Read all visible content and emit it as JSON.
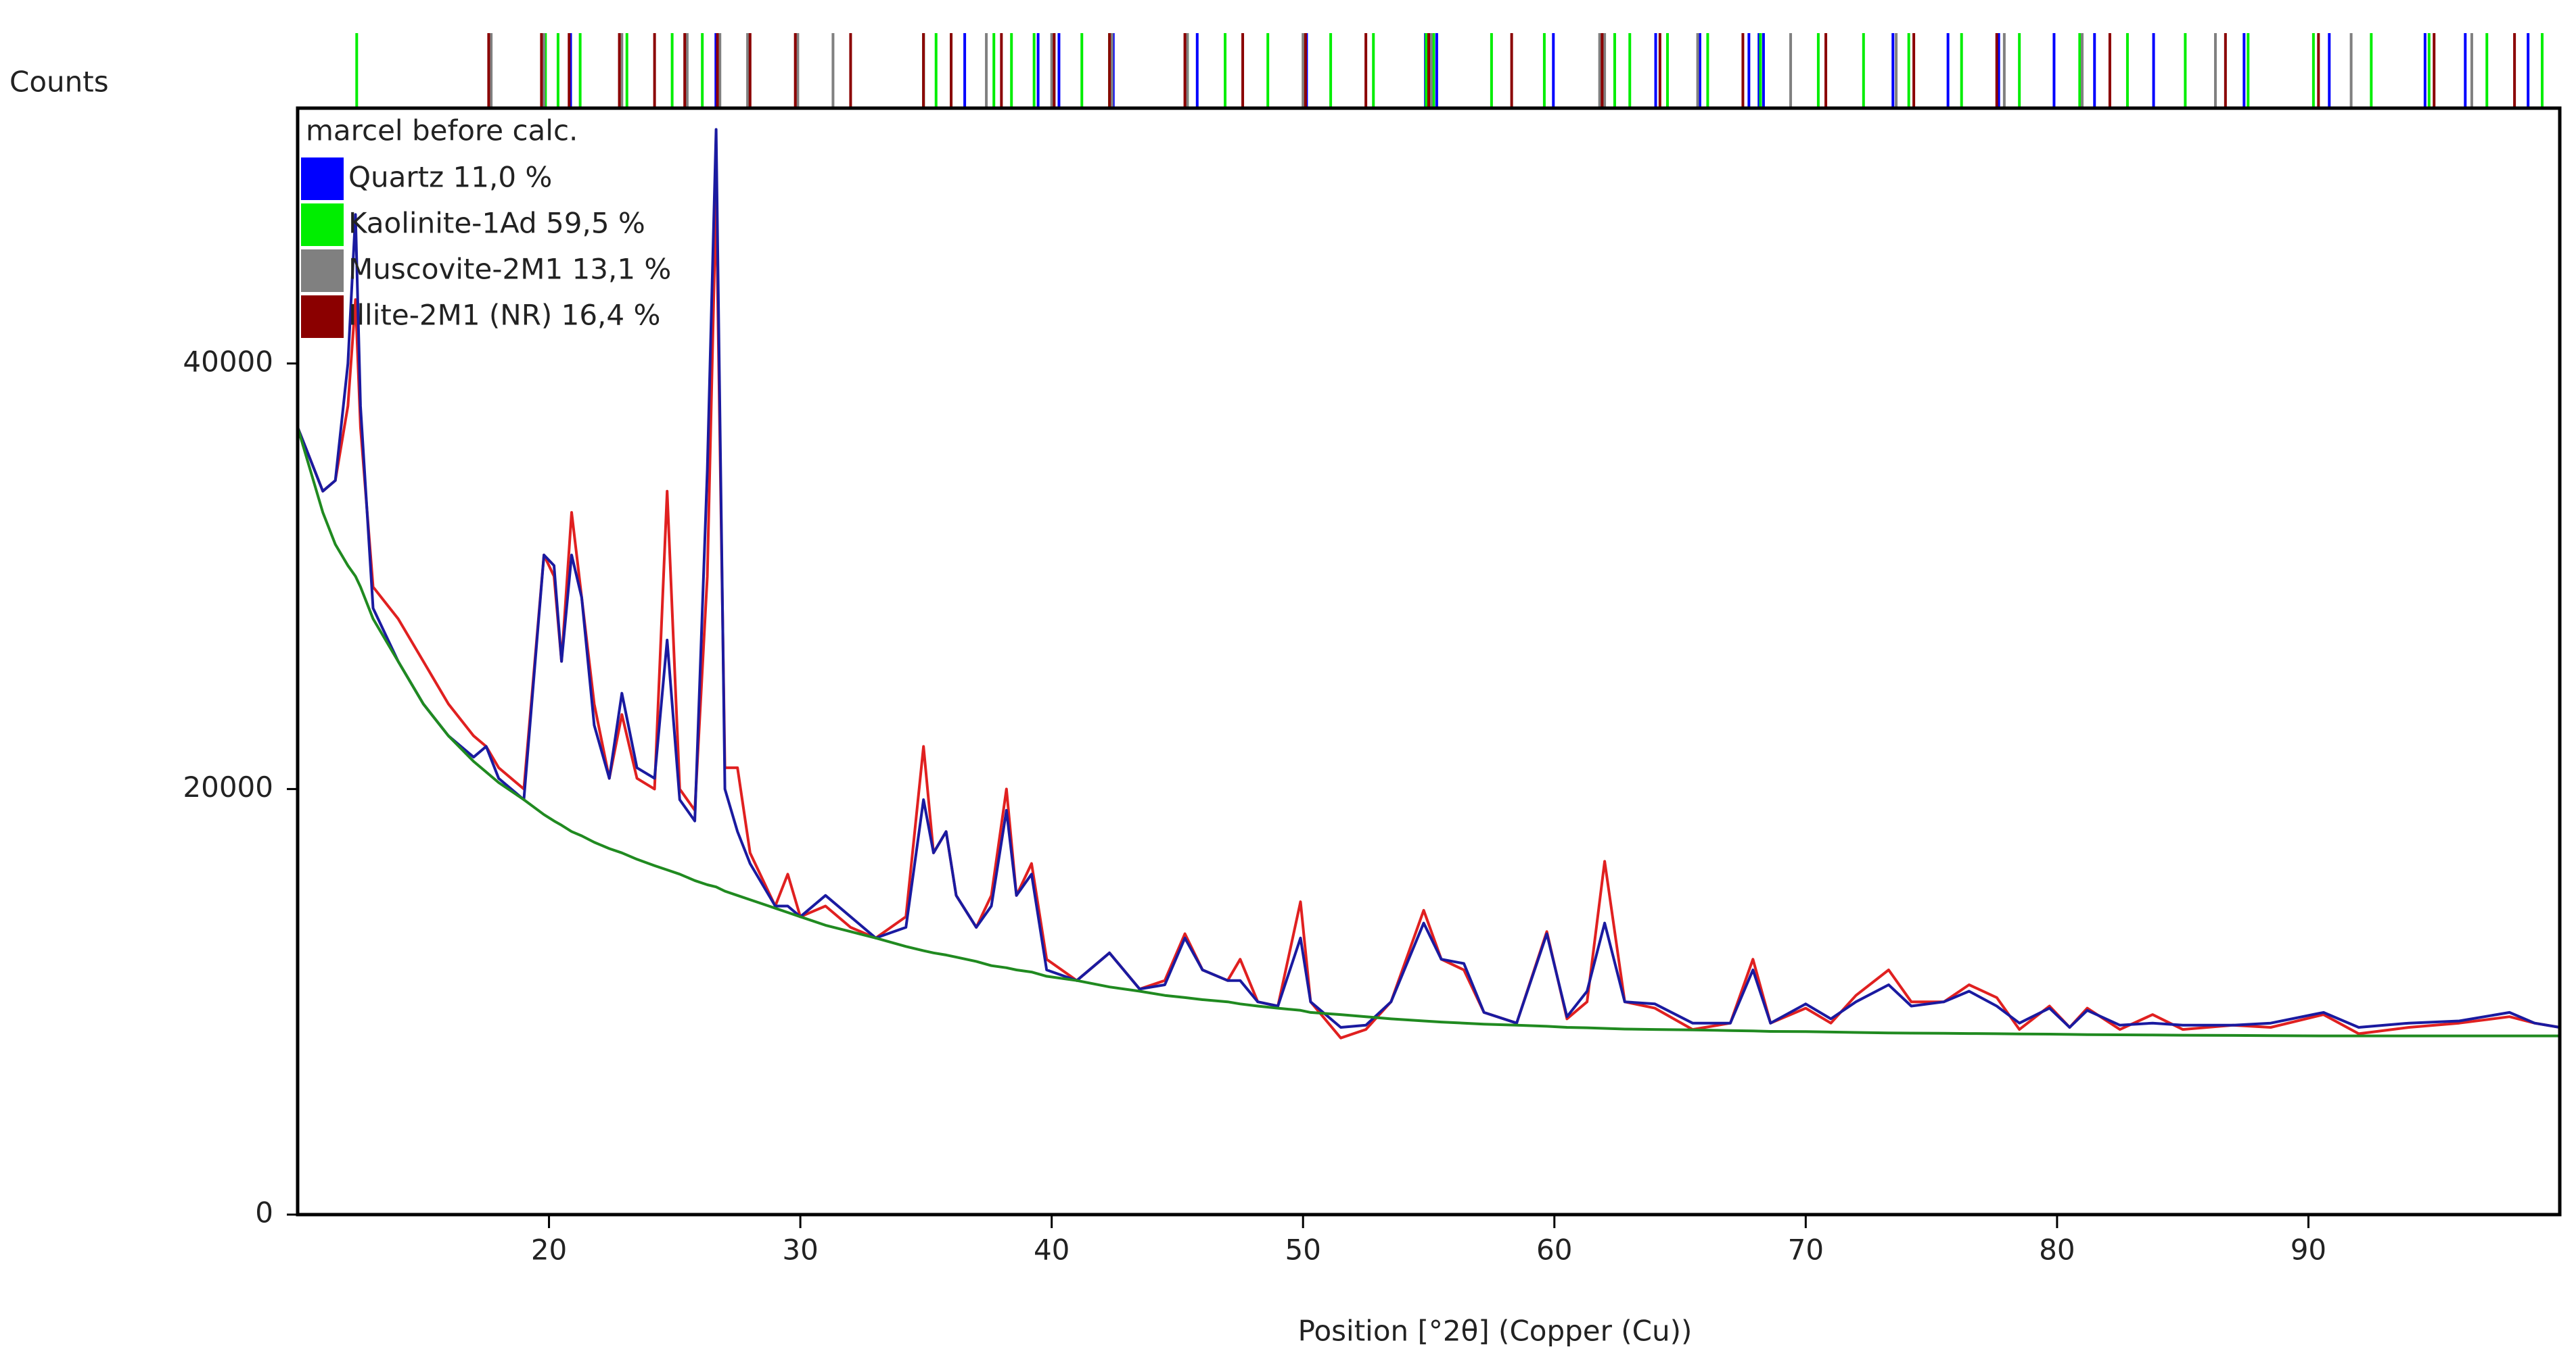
{
  "chart_data": {
    "type": "line",
    "y_label": "Counts",
    "x_label": "Position [°2θ] (Copper (Cu))",
    "legend_title": "marcel before calc.",
    "legend_position": "upper left",
    "xlim": [
      10,
      100
    ],
    "ylim": [
      0,
      52000
    ],
    "xticks": [
      20,
      30,
      40,
      50,
      60,
      70,
      80,
      90
    ],
    "yticks": [
      0,
      20000,
      40000
    ],
    "x": [
      10,
      10.5,
      11,
      11.5,
      12,
      12.3,
      12.5,
      13,
      14,
      15,
      16,
      17,
      17.5,
      18,
      19,
      19.8,
      20.2,
      20.5,
      20.9,
      21.3,
      21.8,
      22.4,
      22.9,
      23.5,
      24.2,
      24.7,
      25.2,
      25.8,
      26.3,
      26.65,
      27.0,
      27.5,
      28.0,
      29.0,
      29.5,
      30.0,
      31.0,
      32.0,
      33.0,
      34.2,
      34.9,
      35.3,
      35.8,
      36.2,
      37.0,
      37.6,
      38.2,
      38.6,
      39.2,
      39.8,
      41.0,
      42.3,
      43.5,
      44.5,
      45.3,
      46.0,
      47.0,
      47.5,
      48.2,
      49.0,
      49.9,
      50.3,
      51.5,
      52.5,
      53.5,
      54.8,
      55.5,
      56.4,
      57.2,
      58.5,
      59.7,
      60.5,
      61.3,
      62.0,
      62.8,
      64.0,
      65.5,
      67.0,
      67.9,
      68.6,
      70.0,
      71.0,
      72.0,
      73.3,
      74.2,
      75.5,
      76.5,
      77.6,
      78.5,
      79.7,
      80.5,
      81.2,
      82.5,
      83.8,
      85.0,
      87.0,
      88.5,
      90.6,
      92.0,
      94.0,
      96.0,
      98.0,
      99.0,
      100
    ],
    "series": [
      {
        "color": "#e02020",
        "values": [
          37000,
          35500,
          34000,
          34500,
          38000,
          43000,
          37000,
          29500,
          28000,
          26000,
          24000,
          22500,
          22000,
          21000,
          20000,
          31000,
          30000,
          26000,
          33000,
          29000,
          24000,
          20500,
          23500,
          20500,
          20000,
          34000,
          20000,
          19000,
          30000,
          48000,
          21000,
          21000,
          17000,
          14500,
          16000,
          14000,
          14500,
          13500,
          13000,
          14000,
          22000,
          17000,
          18000,
          15000,
          13500,
          15000,
          20000,
          15000,
          16500,
          12000,
          11000,
          12300,
          10600,
          11000,
          13200,
          11500,
          11000,
          12000,
          10000,
          9800,
          14700,
          10000,
          8300,
          8700,
          10000,
          14300,
          12000,
          11500,
          9500,
          9000,
          13300,
          9200,
          10000,
          16600,
          10000,
          9700,
          8700,
          9000,
          12000,
          9000,
          9700,
          9000,
          10300,
          11500,
          10000,
          10000,
          10800,
          10200,
          8700,
          9800,
          8800,
          9700,
          8700,
          9400,
          8700,
          8900,
          8800,
          9400,
          8500,
          8800,
          9000,
          9300,
          9000,
          8800
        ]
      },
      {
        "color": "#1a1aa0",
        "values": [
          37000,
          35500,
          34000,
          34500,
          40000,
          47000,
          38000,
          28500,
          26000,
          24000,
          22500,
          21500,
          22000,
          20500,
          19500,
          31000,
          30500,
          26000,
          31000,
          29000,
          23000,
          20500,
          24500,
          21000,
          20500,
          27000,
          19500,
          18500,
          35000,
          51000,
          20000,
          18000,
          16500,
          14500,
          14500,
          14000,
          15000,
          14000,
          13000,
          13500,
          19500,
          17000,
          18000,
          15000,
          13500,
          14500,
          19000,
          15000,
          16000,
          11500,
          11000,
          12300,
          10600,
          10800,
          13000,
          11500,
          11000,
          11000,
          10000,
          9800,
          13000,
          10000,
          8800,
          8900,
          10000,
          13700,
          12000,
          11800,
          9500,
          9000,
          13200,
          9300,
          10500,
          13700,
          10000,
          9900,
          9000,
          9000,
          11500,
          9000,
          9900,
          9200,
          10000,
          10800,
          9800,
          10000,
          10500,
          9800,
          9000,
          9700,
          8800,
          9600,
          8900,
          9000,
          8900,
          8900,
          9000,
          9500,
          8800,
          9000,
          9100,
          9500,
          9000,
          8800
        ]
      },
      {
        "color": "#208a20",
        "values": [
          37000,
          35000,
          33000,
          31500,
          30500,
          30000,
          29500,
          28000,
          26000,
          24000,
          22500,
          21300,
          20800,
          20300,
          19500,
          18800,
          18500,
          18300,
          18000,
          17800,
          17500,
          17200,
          17000,
          16700,
          16400,
          16200,
          16000,
          15700,
          15500,
          15400,
          15200,
          15000,
          14800,
          14400,
          14200,
          14000,
          13600,
          13300,
          13000,
          12600,
          12400,
          12300,
          12200,
          12100,
          11900,
          11700,
          11600,
          11500,
          11400,
          11200,
          11000,
          10700,
          10500,
          10300,
          10200,
          10100,
          10000,
          9900,
          9800,
          9700,
          9600,
          9500,
          9400,
          9300,
          9200,
          9100,
          9050,
          9000,
          8950,
          8900,
          8850,
          8800,
          8780,
          8750,
          8720,
          8700,
          8680,
          8650,
          8630,
          8610,
          8600,
          8580,
          8560,
          8540,
          8530,
          8520,
          8510,
          8500,
          8490,
          8480,
          8470,
          8460,
          8450,
          8440,
          8430,
          8420,
          8410,
          8400,
          8400,
          8400,
          8400,
          8400,
          8400,
          8400
        ]
      }
    ],
    "phases": [
      {
        "name": "Quartz 11,0 %",
        "color": "#0000ff",
        "positions": [
          20.86,
          26.64,
          36.54,
          39.46,
          40.29,
          42.45,
          45.79,
          50.14,
          54.87,
          55.32,
          59.96,
          64.03,
          65.79,
          67.74,
          68.14,
          68.32,
          73.47,
          75.66,
          77.68,
          79.88,
          81.49,
          83.84,
          87.44,
          90.83,
          94.64,
          96.24,
          98.74
        ]
      },
      {
        "name": "Kaolinite-1Ad 59,5 %",
        "color": "#00ee00",
        "positions": [
          12.35,
          19.86,
          20.36,
          21.24,
          23.1,
          24.9,
          26.1,
          34.9,
          35.4,
          36.0,
          37.7,
          38.4,
          39.3,
          41.2,
          42.3,
          45.4,
          46.9,
          48.6,
          51.1,
          52.8,
          54.9,
          55.2,
          57.5,
          59.6,
          62.4,
          63.0,
          64.5,
          66.1,
          68.2,
          70.5,
          72.3,
          74.1,
          76.2,
          78.5,
          80.9,
          82.8,
          85.1,
          87.6,
          90.2,
          92.5,
          94.8,
          97.1,
          99.3
        ]
      },
      {
        "name": "Muscovite-2M1 13,1 %",
        "color": "#808080",
        "positions": [
          17.7,
          19.8,
          22.9,
          25.5,
          26.8,
          27.9,
          29.9,
          31.3,
          34.9,
          37.4,
          40.0,
          42.4,
          45.4,
          50.0,
          55.1,
          61.8,
          62.0,
          65.7,
          69.4,
          73.6,
          77.9,
          81.0,
          86.3,
          91.7,
          96.5
        ]
      },
      {
        "name": "Illite-2M1 (NR) 16,4 %",
        "color": "#8b0000",
        "positions": [
          17.6,
          19.7,
          20.8,
          22.8,
          24.2,
          25.4,
          26.7,
          28.0,
          29.8,
          32.0,
          34.9,
          36.0,
          38.0,
          40.1,
          42.3,
          45.3,
          47.6,
          50.1,
          52.5,
          55.0,
          58.3,
          61.9,
          64.2,
          67.5,
          70.8,
          74.3,
          77.6,
          82.1,
          86.7,
          90.4,
          95.0,
          98.2
        ]
      }
    ]
  }
}
